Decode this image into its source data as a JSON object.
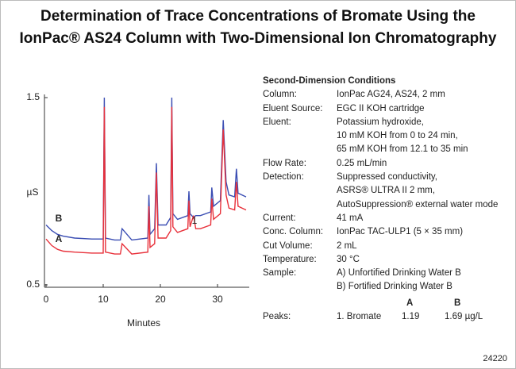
{
  "chart_data": {
    "type": "line",
    "title": [
      "Determination of Trace Concentrations of Bromate Using the",
      "IonPac® AS24 Column with Two-Dimensional Ion Chromatography"
    ],
    "x_label": "Minutes",
    "y_label": "µS",
    "x": [
      0,
      1,
      2,
      3,
      5,
      8,
      10,
      10.2,
      10.4,
      12,
      13,
      13.3,
      15,
      17.8,
      18,
      18.2,
      19,
      19.3,
      19.6,
      21,
      21.8,
      22,
      22.2,
      23,
      24.8,
      25,
      25.2,
      25.8,
      26.2,
      27,
      28.8,
      29,
      29.3,
      30.5,
      31,
      31.5,
      32,
      33,
      33.3,
      33.6,
      35
    ],
    "series": [
      {
        "name": "B",
        "color": "#3a4db3",
        "values": [
          0.82,
          0.79,
          0.77,
          0.76,
          0.75,
          0.745,
          0.745,
          1.5,
          0.75,
          0.74,
          0.74,
          0.8,
          0.74,
          0.75,
          0.98,
          0.77,
          0.8,
          1.15,
          0.82,
          0.82,
          0.86,
          1.5,
          0.88,
          0.85,
          0.87,
          1.0,
          0.88,
          0.86,
          0.87,
          0.87,
          0.89,
          1.02,
          0.92,
          0.95,
          1.38,
          1.05,
          0.98,
          0.97,
          1.12,
          0.99,
          0.97
        ]
      },
      {
        "name": "A",
        "color": "#e8303a",
        "values": [
          0.745,
          0.71,
          0.69,
          0.68,
          0.675,
          0.67,
          0.67,
          1.45,
          0.675,
          0.665,
          0.665,
          0.72,
          0.665,
          0.675,
          0.92,
          0.7,
          0.72,
          1.1,
          0.75,
          0.75,
          0.79,
          1.45,
          0.81,
          0.78,
          0.8,
          0.95,
          0.81,
          0.87,
          0.8,
          0.8,
          0.82,
          0.96,
          0.85,
          0.88,
          1.33,
          0.98,
          0.91,
          0.9,
          1.05,
          0.92,
          0.9
        ]
      }
    ],
    "annotations": [
      "1"
    ],
    "xlim": [
      0,
      35
    ],
    "ylim": [
      0.5,
      1.5
    ],
    "xticks": [
      0,
      10,
      20,
      30
    ],
    "yticks": [
      0.5,
      1.5
    ]
  },
  "conditions": {
    "title": "Second-Dimension Conditions",
    "rows": [
      {
        "label": "Column:",
        "lines": [
          "IonPac AG24, AS24, 2 mm"
        ]
      },
      {
        "label": "Eluent Source:",
        "lines": [
          "EGC II KOH cartridge"
        ]
      },
      {
        "label": "Eluent:",
        "lines": [
          "Potassium hydroxide,",
          "10 mM KOH from 0 to 24 min,",
          "65 mM KOH from 12.1 to 35 min"
        ]
      },
      {
        "label": "Flow Rate:",
        "lines": [
          "0.25 mL/min"
        ]
      },
      {
        "label": "Detection:",
        "lines": [
          "Suppressed conductivity,",
          "ASRS® ULTRA II 2 mm,",
          "AutoSuppression® external water mode"
        ]
      },
      {
        "label": "Current:",
        "lines": [
          "41 mA"
        ]
      },
      {
        "label": "Conc. Column:",
        "lines": [
          "IonPac TAC-ULP1 (5 × 35 mm)"
        ]
      },
      {
        "label": "Cut Volume:",
        "lines": [
          "2 mL"
        ]
      },
      {
        "label": "Temperature:",
        "lines": [
          "30 °C"
        ]
      },
      {
        "label": "Sample:",
        "lines": [
          "A) Unfortified Drinking Water B",
          "B) Fortified Drinking Water B"
        ]
      }
    ],
    "peaks": {
      "label": "Peaks:",
      "col_a": "A",
      "col_b": "B",
      "name": "1. Bromate",
      "a": "1.19",
      "b": "1.69 µg/L"
    }
  },
  "figure_id": "24220"
}
